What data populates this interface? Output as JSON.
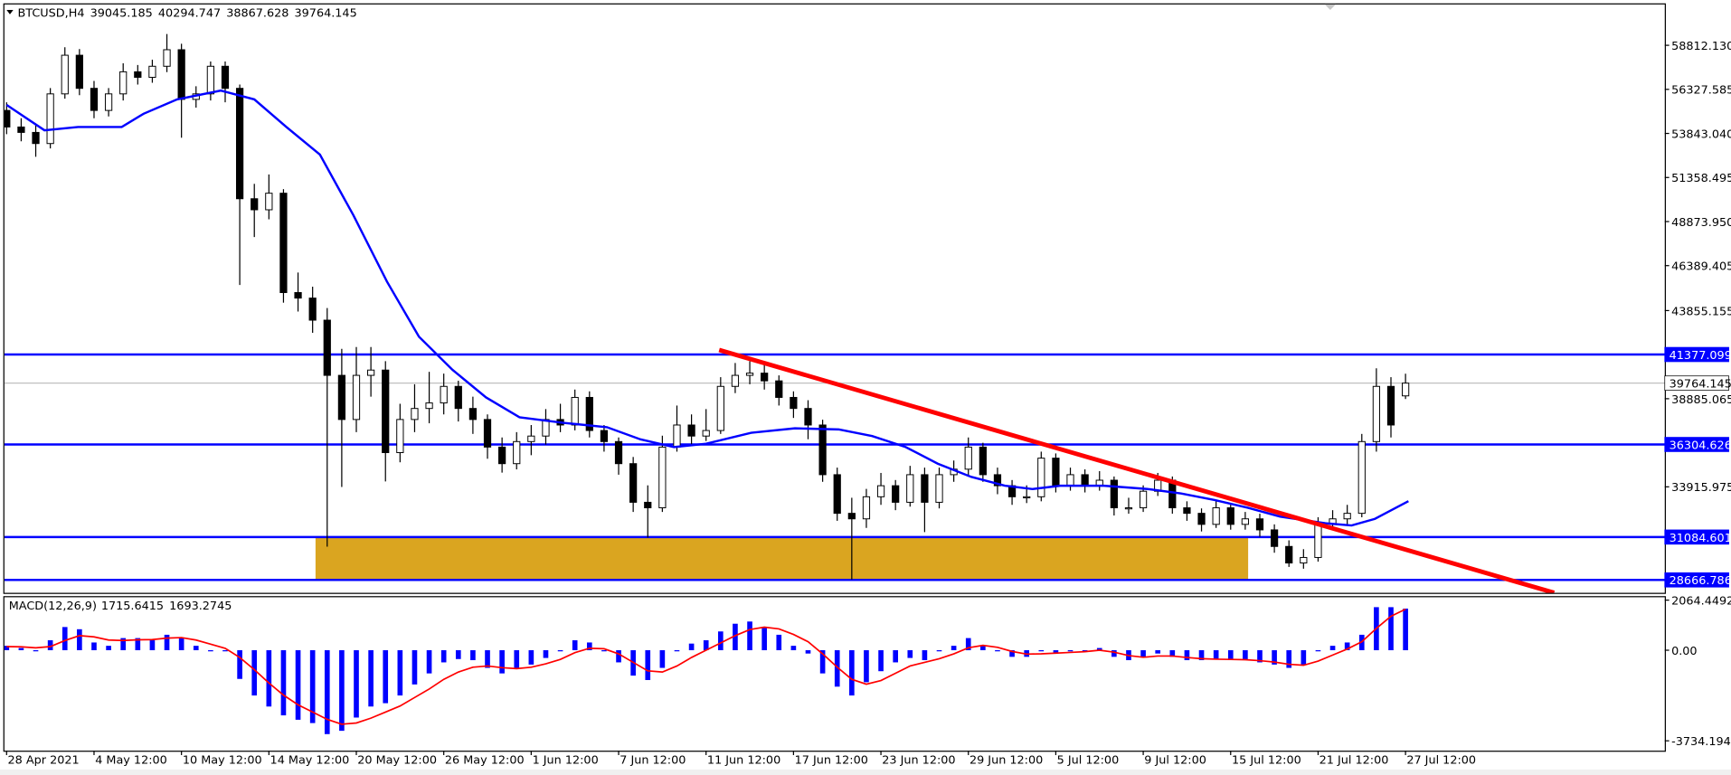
{
  "chart_data": {
    "type": "candlestick",
    "title": "BTCUSD,H4",
    "candles": [
      [
        55140,
        55600,
        53800,
        54206
      ],
      [
        54206,
        54700,
        53400,
        53900
      ],
      [
        53900,
        54300,
        52526,
        53273
      ],
      [
        53273,
        56400,
        53000,
        56073
      ],
      [
        56073,
        58700,
        55800,
        58252
      ],
      [
        58252,
        58600,
        56000,
        56385
      ],
      [
        56385,
        56800,
        54700,
        55140
      ],
      [
        55140,
        56400,
        54800,
        56073
      ],
      [
        56073,
        57800,
        55700,
        57318
      ],
      [
        57318,
        57700,
        56600,
        57007
      ],
      [
        57007,
        58000,
        56700,
        57630
      ],
      [
        57630,
        59450,
        57300,
        58563
      ],
      [
        58563,
        58900,
        53600,
        55762
      ],
      [
        55762,
        56500,
        55300,
        56073
      ],
      [
        56073,
        57900,
        55700,
        57630
      ],
      [
        57630,
        57900,
        55600,
        56385
      ],
      [
        56385,
        56600,
        45300,
        50161
      ],
      [
        50161,
        51000,
        48000,
        49538
      ],
      [
        49538,
        51530,
        49000,
        50472
      ],
      [
        50472,
        50700,
        44300,
        44870
      ],
      [
        44870,
        46000,
        43800,
        44559
      ],
      [
        44559,
        45200,
        42600,
        43314
      ],
      [
        43314,
        44000,
        30543,
        40202
      ],
      [
        40202,
        41700,
        33908,
        37713
      ],
      [
        37713,
        41800,
        37000,
        40202
      ],
      [
        40202,
        41800,
        39000,
        40500
      ],
      [
        40500,
        41000,
        34219,
        35846
      ],
      [
        35846,
        38600,
        35300,
        37713
      ],
      [
        37713,
        39700,
        37000,
        38335
      ],
      [
        38335,
        40400,
        37500,
        38646
      ],
      [
        38646,
        40300,
        38000,
        39580
      ],
      [
        39580,
        39900,
        37600,
        38335
      ],
      [
        38335,
        39000,
        36900,
        37713
      ],
      [
        37713,
        38000,
        35500,
        36157
      ],
      [
        36157,
        36700,
        34717,
        35223
      ],
      [
        35223,
        37000,
        34900,
        36468
      ],
      [
        36468,
        37400,
        35700,
        36779
      ],
      [
        36779,
        38300,
        36300,
        37713
      ],
      [
        37713,
        38600,
        37000,
        37402
      ],
      [
        37402,
        39400,
        37100,
        38958
      ],
      [
        38958,
        39300,
        36700,
        37092
      ],
      [
        37092,
        37400,
        35900,
        36468
      ],
      [
        36468,
        36700,
        34600,
        35223
      ],
      [
        35223,
        35600,
        32500,
        33045
      ],
      [
        33045,
        34000,
        31053,
        32734
      ],
      [
        32734,
        36800,
        32500,
        36157
      ],
      [
        36157,
        38500,
        35900,
        37402
      ],
      [
        37402,
        38000,
        36300,
        36779
      ],
      [
        36779,
        38300,
        36500,
        37092
      ],
      [
        37092,
        40100,
        36900,
        39580
      ],
      [
        39580,
        40900,
        39200,
        40202
      ],
      [
        40202,
        41000,
        39700,
        40327
      ],
      [
        40327,
        40800,
        39400,
        39891
      ],
      [
        39891,
        40200,
        38500,
        38958
      ],
      [
        38958,
        39300,
        37800,
        38335
      ],
      [
        38335,
        38800,
        36600,
        37402
      ],
      [
        37402,
        37700,
        34200,
        34601
      ],
      [
        34601,
        35000,
        32000,
        32422
      ],
      [
        32422,
        33300,
        28688,
        32111
      ],
      [
        32111,
        33800,
        31600,
        33356
      ],
      [
        33356,
        34700,
        32900,
        33979
      ],
      [
        33979,
        34300,
        32600,
        33045
      ],
      [
        33045,
        35100,
        32800,
        34601
      ],
      [
        34601,
        35000,
        31364,
        33045
      ],
      [
        33045,
        35000,
        32700,
        34601
      ],
      [
        34601,
        35400,
        34200,
        34912
      ],
      [
        34912,
        36700,
        34500,
        36157
      ],
      [
        36157,
        36400,
        34200,
        34601
      ],
      [
        34601,
        35000,
        33500,
        33979
      ],
      [
        33979,
        34300,
        32900,
        33356
      ],
      [
        33356,
        34000,
        33000,
        33356
      ],
      [
        33356,
        35900,
        33100,
        35534
      ],
      [
        35534,
        35800,
        33600,
        33979
      ],
      [
        33979,
        35000,
        33700,
        34601
      ],
      [
        34601,
        34900,
        33600,
        33979
      ],
      [
        33979,
        34800,
        33700,
        34290
      ],
      [
        34290,
        34500,
        32300,
        32734
      ],
      [
        32734,
        33300,
        32400,
        32734
      ],
      [
        32734,
        34000,
        32500,
        33668
      ],
      [
        33668,
        34700,
        33400,
        34290
      ],
      [
        34290,
        34500,
        32400,
        32734
      ],
      [
        32734,
        33100,
        32000,
        32422
      ],
      [
        32422,
        32700,
        31400,
        31800
      ],
      [
        31800,
        33100,
        31600,
        32734
      ],
      [
        32734,
        33000,
        31500,
        31800
      ],
      [
        31800,
        32500,
        31500,
        32111
      ],
      [
        32111,
        32400,
        31100,
        31489
      ],
      [
        31489,
        31800,
        30200,
        30555
      ],
      [
        30555,
        30900,
        29400,
        29622
      ],
      [
        29622,
        30400,
        29300,
        29933
      ],
      [
        29933,
        32200,
        29700,
        31800
      ],
      [
        31800,
        32600,
        31500,
        32111
      ],
      [
        32111,
        32900,
        31800,
        32422
      ],
      [
        32422,
        36900,
        32200,
        36468
      ],
      [
        36468,
        40600,
        35900,
        39580
      ],
      [
        39580,
        40100,
        36700,
        37402
      ],
      [
        39045.185,
        40294.747,
        38867.628,
        39764.145
      ]
    ],
    "xlim": [
      -0.15,
      113.79
    ],
    "xticks": [
      {
        "value": 0,
        "label": "28 Apr 2021"
      },
      {
        "value": 6,
        "label": "4 May 12:00"
      },
      {
        "value": 12,
        "label": "10 May 12:00"
      },
      {
        "value": 18,
        "label": "14 May 12:00"
      },
      {
        "value": 24,
        "label": "20 May 12:00"
      },
      {
        "value": 30,
        "label": "26 May 12:00"
      },
      {
        "value": 36,
        "label": "1 Jun 12:00"
      },
      {
        "value": 42,
        "label": "7 Jun 12:00"
      },
      {
        "value": 48,
        "label": "11 Jun 12:00"
      },
      {
        "value": 54,
        "label": "17 Jun 12:00"
      },
      {
        "value": 60,
        "label": "23 Jun 12:00"
      },
      {
        "value": 66,
        "label": "29 Jun 12:00"
      },
      {
        "value": 72,
        "label": "5 Jul 12:00"
      },
      {
        "value": 78,
        "label": "9 Jul 12:00"
      },
      {
        "value": 84,
        "label": "15 Jul 12:00"
      },
      {
        "value": 90,
        "label": "21 Jul 12:00"
      },
      {
        "value": 96,
        "label": "27 Jul 12:00"
      }
    ],
    "ylim": [
      27940,
      61115
    ],
    "yticks": [
      {
        "value": 58812.13,
        "label": "58812.130"
      },
      56327.585,
      {
        "value": 53843.04,
        "label": "53843.040"
      },
      51358.495,
      {
        "value": 48873.95,
        "label": "48873.950"
      },
      46389.405,
      43855.155,
      38885.065,
      33915.975
    ],
    "bull_color": "#ffffff",
    "bear_color": "#000000",
    "ma": {
      "color": "#0000ff",
      "x": [
        0,
        2.6,
        4.9,
        7.9,
        9.4,
        11.7,
        14.7,
        17,
        19.2,
        21.5,
        23.8,
        26.1,
        28.3,
        30.6,
        32.9,
        35.2,
        38.2,
        41.2,
        43.5,
        45.8,
        48,
        51.1,
        54.1,
        57.1,
        59.4,
        61.7,
        63.9,
        66.2,
        68.5,
        70.4,
        72.3,
        75.3,
        78.3,
        80.6,
        82.9,
        85.2,
        87.4,
        90.5,
        92.3,
        93.9,
        96.2
      ],
      "values": [
        55451,
        54020,
        54206,
        54206,
        54953,
        55762,
        56260,
        55762,
        54206,
        52650,
        49227,
        45492,
        42380,
        40513,
        38958,
        37838,
        37527,
        37278,
        36593,
        36157,
        36344,
        36966,
        37215,
        37153,
        36779,
        36157,
        35223,
        34477,
        33979,
        33792,
        33979,
        33979,
        33792,
        33543,
        33170,
        32734,
        32236,
        31863,
        31738,
        32111,
        33107
      ]
    },
    "levels": {
      "color": "#0000ff",
      "values": [
        41377.099,
        36304.626,
        31084.601,
        28666.786
      ]
    },
    "zone": {
      "color": "#daa520",
      "x": [
        21.2,
        85.2
      ],
      "y": [
        28666.786,
        31084.601
      ]
    },
    "trendline": {
      "color": "#ff0000",
      "x": [
        48.9,
        106.2
      ],
      "values": [
        41634,
        27941
      ]
    },
    "macd": {
      "title": "MACD(12,26,9)",
      "ylim": [
        -4141,
        2184
      ],
      "yticks": [
        2064.4492,
        {
          "value": 0,
          "label": "0.00"
        },
        -3734.194
      ],
      "histogram": {
        "color": "#0000ff",
        "values": [
          182,
          91,
          -46,
          410,
          956,
          865,
          319,
          182,
          500,
          500,
          410,
          637,
          500,
          182,
          -46,
          -46,
          -1183,
          -1866,
          -2321,
          -2685,
          -2867,
          -3003,
          -3458,
          -3322,
          -2776,
          -2321,
          -2184,
          -1866,
          -1411,
          -956,
          -501,
          -364,
          -410,
          -728,
          -956,
          -728,
          -592,
          -319,
          -46,
          410,
          319,
          -46,
          -501,
          -1047,
          -1229,
          -728,
          -46,
          273,
          410,
          774,
          1092,
          1183,
          956,
          637,
          182,
          -137,
          -956,
          -1502,
          -1866,
          -1320,
          -865,
          -501,
          -319,
          -410,
          -46,
          182,
          500,
          182,
          -46,
          -273,
          -273,
          -46,
          -137,
          -46,
          -46,
          91,
          -273,
          -410,
          -273,
          -137,
          -273,
          -410,
          -410,
          -364,
          -410,
          -410,
          -501,
          -592,
          -728,
          -592,
          -46,
          182,
          319,
          637,
          1775,
          1775,
          1715.6415
        ]
      },
      "signal": {
        "color": "#ff0000",
        "values": [
          150,
          140,
          100,
          150,
          400,
          600,
          550,
          420,
          400,
          430,
          440,
          500,
          520,
          420,
          250,
          80,
          -300,
          -800,
          -1350,
          -1850,
          -2250,
          -2550,
          -2850,
          -3050,
          -3000,
          -2800,
          -2550,
          -2300,
          -1950,
          -1600,
          -1200,
          -900,
          -700,
          -650,
          -720,
          -760,
          -700,
          -560,
          -380,
          -100,
          80,
          60,
          -150,
          -500,
          -850,
          -900,
          -650,
          -300,
          0,
          300,
          600,
          850,
          950,
          880,
          650,
          350,
          -150,
          -700,
          -1200,
          -1400,
          -1250,
          -950,
          -650,
          -500,
          -350,
          -150,
          100,
          200,
          120,
          -50,
          -160,
          -150,
          -120,
          -90,
          -60,
          0,
          -80,
          -220,
          -290,
          -240,
          -240,
          -300,
          -350,
          -370,
          -380,
          -390,
          -430,
          -490,
          -580,
          -620,
          -450,
          -200,
          50,
          350,
          900,
          1400,
          1693.2745
        ]
      }
    }
  }
}
